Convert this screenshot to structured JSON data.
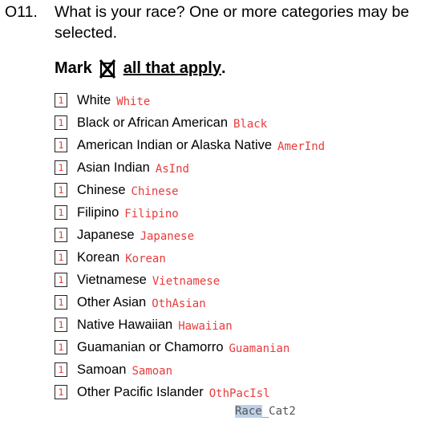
{
  "question": {
    "number": "O11.",
    "text": "What is your race? One or more categories may be selected."
  },
  "instruction": {
    "prefix": "Mark",
    "mark_icon": "checkbox-x-icon",
    "suffix": "all that apply",
    "end": "."
  },
  "options": [
    {
      "box": "1",
      "label": "White",
      "code": "White"
    },
    {
      "box": "1",
      "label": "Black or African American",
      "code": "Black"
    },
    {
      "box": "1",
      "label": "American Indian or Alaska Native",
      "code": "AmerInd"
    },
    {
      "box": "1",
      "label": "Asian Indian",
      "code": "AsInd"
    },
    {
      "box": "1",
      "label": "Chinese",
      "code": "Chinese"
    },
    {
      "box": "1",
      "label": "Filipino",
      "code": "Filipino"
    },
    {
      "box": "1",
      "label": "Japanese",
      "code": "Japanese"
    },
    {
      "box": "1",
      "label": "Korean",
      "code": "Korean"
    },
    {
      "box": "1",
      "label": "Vietnamese",
      "code": "Vietnamese"
    },
    {
      "box": "1",
      "label": "Other Asian",
      "code": "OthAsian"
    },
    {
      "box": "1",
      "label": "Native Hawaiian",
      "code": "Hawaiian"
    },
    {
      "box": "1",
      "label": "Guamanian or Chamorro",
      "code": "Guamanian"
    },
    {
      "box": "1",
      "label": "Samoan",
      "code": "Samoan"
    },
    {
      "box": "1",
      "label": "Other Pacific Islander",
      "code": "OthPacIsl"
    }
  ],
  "variable": {
    "highlighted": "Race",
    "rest": "_Cat2"
  },
  "colors": {
    "code_text": "#e83a3a",
    "highlight": "#bcd0e8"
  }
}
